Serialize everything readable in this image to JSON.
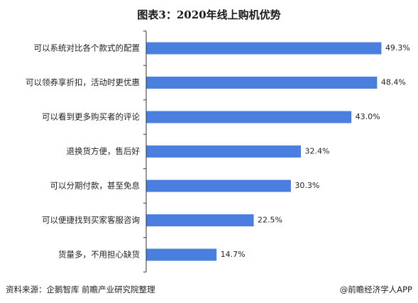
{
  "title": "图表3：2020年线上购机优势",
  "source": "资料来源：企鹅智库 前瞻产业研究院整理",
  "brand": "@前瞻经济学人APP",
  "colors": {
    "bar": "#4a7fe0",
    "axis": "#333333"
  },
  "chart_data": {
    "type": "bar",
    "orientation": "horizontal",
    "title": "图表3：2020年线上购机优势",
    "categories": [
      "可以系统对比各个款式的配置",
      "可以领券享折扣，活动时更优惠",
      "可以看到更多购买者的评论",
      "退换货方便，售后好",
      "可以分期付款，甚至免息",
      "可以便捷找到买家客服咨询",
      "货量多，不用担心缺货"
    ],
    "values": [
      49.3,
      48.4,
      43.0,
      32.4,
      30.3,
      22.5,
      14.7
    ],
    "value_labels": [
      "49.3%",
      "48.4%",
      "43.0%",
      "32.4%",
      "30.3%",
      "22.5%",
      "14.7%"
    ],
    "xlim": [
      0,
      50.5
    ],
    "grid": false
  }
}
